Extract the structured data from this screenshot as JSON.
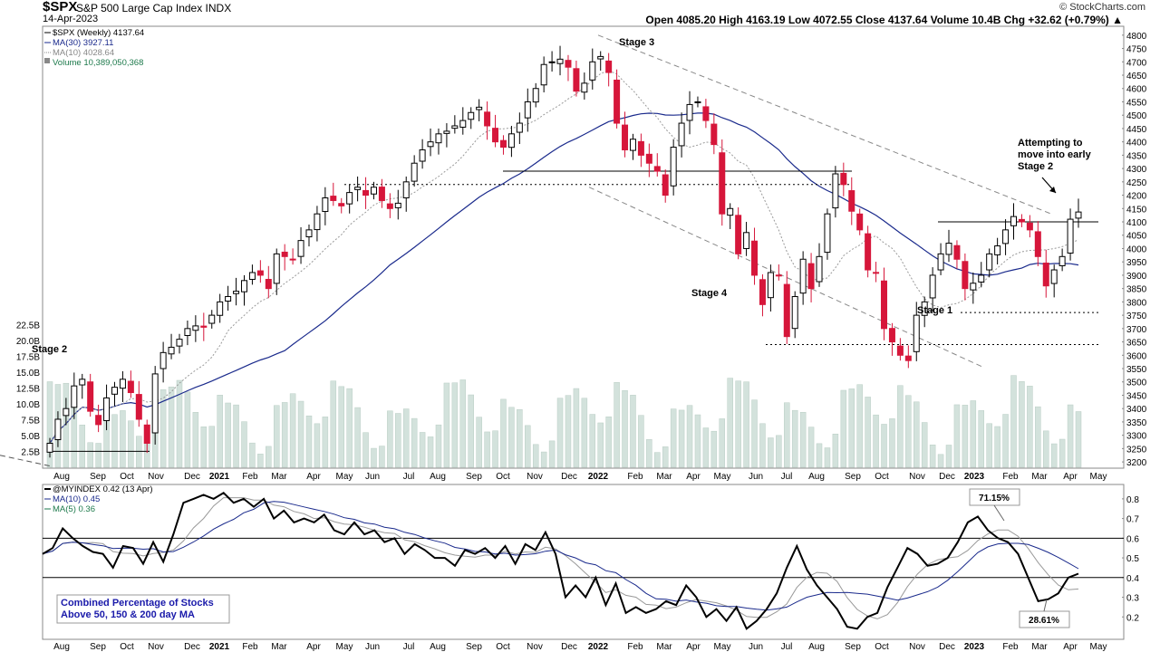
{
  "header": {
    "symbol": "$SPX",
    "description": "S&P 500 Large Cap Index  INDX",
    "date": "14-Apr-2023",
    "copyright": "© StockCharts.com",
    "ohlc": "Open 4085.20   High 4163.19   Low 4072.55   Close 4137.64   Volume 10.4B   Chg +32.62 (+0.79%) ▲"
  },
  "colors": {
    "up": "#000000",
    "down": "#d6163a",
    "ma30": "#1a2a8c",
    "ma10": "#999999",
    "volume": "#d3e2dc",
    "volume_border": "#b9cdc4",
    "annotation_box": "#1a1aaa"
  },
  "main_legend": [
    {
      "text": "$SPX (Weekly) 4137.64",
      "color": "#000000"
    },
    {
      "text": "MA(30) 3927.11",
      "color": "#1a2a8c"
    },
    {
      "text": "MA(10) 4028.64",
      "color": "#888888"
    },
    {
      "text": "Volume 10,389,050,368",
      "color": "#1e7a4c"
    }
  ],
  "lower_legend": [
    {
      "text": "@MYINDEX 0.42 (13 Apr)",
      "color": "#000000"
    },
    {
      "text": "MA(10) 0.45",
      "color": "#1a2a8c"
    },
    {
      "text": "MA(5) 0.36",
      "color": "#1e7a4c"
    }
  ],
  "x_labels": [
    "Aug",
    "Sep",
    "Oct",
    "Nov",
    "Dec",
    "2021",
    "Feb",
    "Mar",
    "Apr",
    "May",
    "Jun",
    "Jul",
    "Aug",
    "Sep",
    "Oct",
    "Nov",
    "Dec",
    "2022",
    "Feb",
    "Mar",
    "Apr",
    "May",
    "Jun",
    "Jul",
    "Aug",
    "Sep",
    "Oct",
    "Nov",
    "Dec",
    "2023",
    "Feb",
    "Mar",
    "Apr",
    "May"
  ],
  "annotations": {
    "stage2_left": "Stage 2",
    "stage3": "Stage 3",
    "stage4": "Stage 4",
    "stage1": "Stage 1",
    "attempting": [
      "Attempting to",
      "move into early",
      "Stage 2"
    ],
    "pct_high": "71.15%",
    "pct_low": "28.61%",
    "box_text": [
      "Combined Percentage of Stocks",
      "Above 50, 150 & 200 day MA"
    ]
  },
  "chart_data": [
    {
      "type": "candlestick",
      "title": "$SPX S&P 500 Large Cap Index (Weekly)",
      "ylim": [
        3180,
        4830
      ],
      "y_ticks": [
        3200,
        3250,
        3300,
        3350,
        3400,
        3450,
        3500,
        3550,
        3600,
        3650,
        3700,
        3750,
        3800,
        3850,
        3900,
        3950,
        4000,
        4050,
        4100,
        4150,
        4200,
        4250,
        4300,
        4350,
        4400,
        4450,
        4500,
        4550,
        4600,
        4650,
        4700,
        4750,
        4800
      ],
      "volume_ticks": [
        "2.5B",
        "5.0B",
        "7.5B",
        "10.0B",
        "12.5B",
        "15.0B",
        "17.5B",
        "20.0B",
        "22.5B"
      ],
      "volume_ylim": [
        0,
        23
      ],
      "close_series": [
        3270,
        3360,
        3400,
        3485,
        3510,
        3390,
        3340,
        3440,
        3480,
        3510,
        3460,
        3360,
        3270,
        3530,
        3610,
        3630,
        3660,
        3700,
        3710,
        3705,
        3750,
        3800,
        3820,
        3840,
        3880,
        3910,
        3900,
        3850,
        3980,
        3970,
        3960,
        4030,
        4070,
        4130,
        4190,
        4180,
        4160,
        4210,
        4230,
        4200,
        4230,
        4180,
        4150,
        4170,
        4250,
        4320,
        4370,
        4400,
        4430,
        4440,
        4460,
        4480,
        4510,
        4530,
        4460,
        4400,
        4380,
        4430,
        4470,
        4550,
        4600,
        4690,
        4700,
        4710,
        4680,
        4590,
        4620,
        4700,
        4720,
        4660,
        4470,
        4370,
        4410,
        4350,
        4320,
        4290,
        4200,
        4380,
        4470,
        4540,
        4550,
        4480,
        4390,
        4130,
        4150,
        3980,
        4060,
        3900,
        3790,
        3910,
        3900,
        3670,
        3820,
        3960,
        3850,
        3970,
        4130,
        4280,
        4240,
        4140,
        4070,
        3920,
        3910,
        3700,
        3650,
        3600,
        3580,
        3750,
        3800,
        3900,
        3980,
        4020,
        3960,
        3850,
        3870,
        3900,
        3980,
        4010,
        4070,
        4120,
        4100,
        4070,
        3970,
        3860,
        3920,
        3970,
        4110,
        4137
      ],
      "ma30_final": 3927.11,
      "ma10_final": 4028.64,
      "horizontal_levels": [
        4290,
        4240,
        4100,
        3760,
        3640,
        3240
      ],
      "trendlines": [
        {
          "from": [
            "2022-01",
            4800
          ],
          "to": [
            "2022-09",
            4290
          ]
        },
        {
          "from": [
            "2022-01",
            4230
          ],
          "to": [
            "2022-10",
            3560
          ]
        }
      ]
    },
    {
      "type": "line",
      "title": "@MYINDEX Combined Percentage of Stocks Above 50, 150 & 200 day MA",
      "ylim": [
        0.1,
        0.85
      ],
      "y_ticks": [
        0.2,
        0.3,
        0.4,
        0.5,
        0.6,
        0.7,
        0.8
      ],
      "reference_lines": [
        0.6,
        0.4
      ],
      "series": [
        {
          "name": "@MYINDEX",
          "values": [
            0.52,
            0.55,
            0.65,
            0.6,
            0.56,
            0.53,
            0.52,
            0.45,
            0.56,
            0.55,
            0.47,
            0.58,
            0.48,
            0.62,
            0.78,
            0.8,
            0.82,
            0.8,
            0.83,
            0.78,
            0.8,
            0.76,
            0.8,
            0.7,
            0.74,
            0.68,
            0.7,
            0.68,
            0.72,
            0.64,
            0.62,
            0.68,
            0.62,
            0.64,
            0.58,
            0.6,
            0.52,
            0.57,
            0.54,
            0.5,
            0.5,
            0.46,
            0.54,
            0.52,
            0.55,
            0.5,
            0.56,
            0.47,
            0.57,
            0.54,
            0.63,
            0.52,
            0.3,
            0.36,
            0.3,
            0.4,
            0.26,
            0.37,
            0.22,
            0.25,
            0.22,
            0.24,
            0.28,
            0.26,
            0.36,
            0.3,
            0.2,
            0.24,
            0.18,
            0.25,
            0.14,
            0.18,
            0.24,
            0.32,
            0.45,
            0.56,
            0.44,
            0.36,
            0.3,
            0.24,
            0.15,
            0.14,
            0.2,
            0.22,
            0.35,
            0.45,
            0.55,
            0.52,
            0.46,
            0.47,
            0.5,
            0.58,
            0.68,
            0.71,
            0.64,
            0.6,
            0.58,
            0.52,
            0.4,
            0.28,
            0.29,
            0.32,
            0.4,
            0.42
          ]
        },
        {
          "name": "MA(10)",
          "final": 0.45
        },
        {
          "name": "MA(5)",
          "final": 0.36
        }
      ]
    }
  ]
}
